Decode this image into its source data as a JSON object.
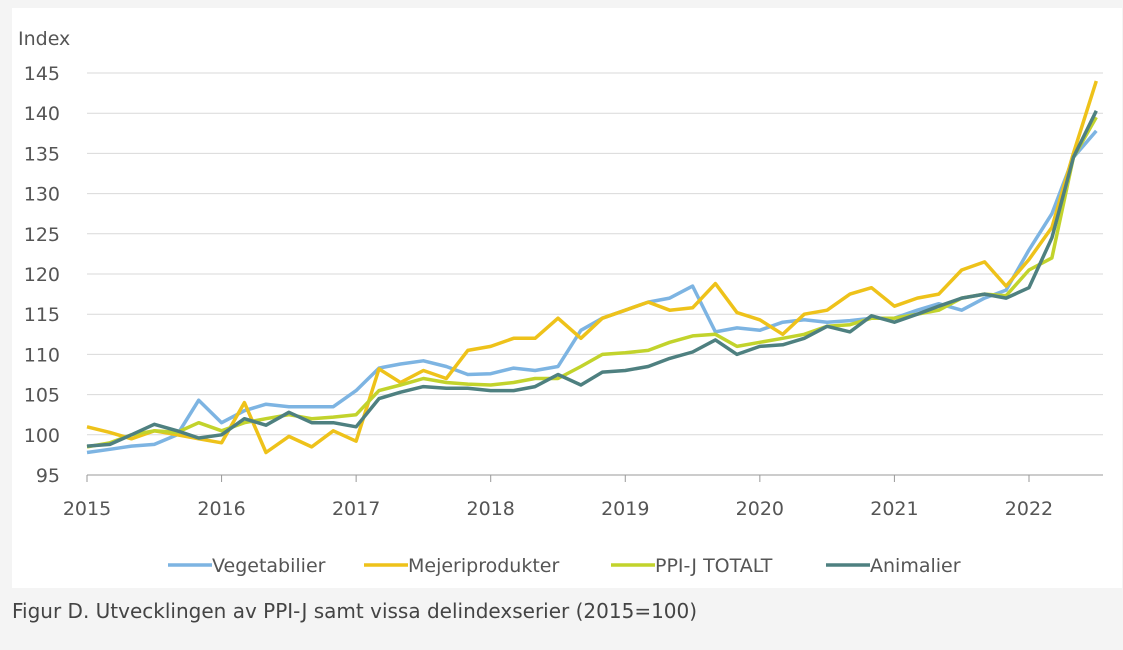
{
  "chart_data": {
    "type": "line",
    "y_label": "Index",
    "caption": "Figur D. Utvecklingen av PPI-J samt vissa delindexserier (2015=100)",
    "x": [
      2015,
      2015.17,
      2015.33,
      2015.5,
      2015.67,
      2015.83,
      2016,
      2016.17,
      2016.33,
      2016.5,
      2016.67,
      2016.83,
      2017,
      2017.17,
      2017.33,
      2017.5,
      2017.67,
      2017.83,
      2018,
      2018.17,
      2018.33,
      2018.5,
      2018.67,
      2018.83,
      2019,
      2019.17,
      2019.33,
      2019.5,
      2019.67,
      2019.83,
      2020,
      2020.17,
      2020.33,
      2020.5,
      2020.67,
      2020.83,
      2021,
      2021.17,
      2021.33,
      2021.5,
      2021.67,
      2021.83,
      2022,
      2022.17,
      2022.33,
      2022.5
    ],
    "series": [
      {
        "name": "Vegetabilier",
        "color": "#7db4e2",
        "values": [
          97.8,
          98.2,
          98.6,
          98.8,
          100,
          104.3,
          101.5,
          103,
          103.8,
          103.5,
          103.5,
          103.5,
          105.5,
          108.3,
          108.8,
          109.2,
          108.5,
          107.5,
          107.6,
          108.3,
          108,
          108.5,
          113,
          114.5,
          115.5,
          116.5,
          117,
          118.5,
          112.8,
          113.3,
          113,
          114,
          114.3,
          114,
          114.2,
          114.5,
          114.5,
          115.5,
          116.3,
          115.5,
          117,
          118,
          123,
          127.5,
          134.5,
          137.8
        ]
      },
      {
        "name": "Mejeriprodukter",
        "color": "#eec21a",
        "values": [
          101,
          100.3,
          99.5,
          100.5,
          100,
          99.5,
          99,
          104,
          97.8,
          99.8,
          98.5,
          100.5,
          99.2,
          108.2,
          106.5,
          108,
          107,
          110.5,
          111,
          112,
          112,
          114.5,
          112,
          114.5,
          115.5,
          116.5,
          115.5,
          115.8,
          118.8,
          115.2,
          114.3,
          112.5,
          115,
          115.5,
          117.5,
          118.3,
          116,
          117,
          117.5,
          120.5,
          121.5,
          118.5,
          121.8,
          125.8,
          135,
          144
        ]
      },
      {
        "name": "PPI-J TOTALT",
        "color": "#c2d32c",
        "values": [
          98.5,
          99,
          100,
          100.5,
          100.3,
          101.5,
          100.5,
          101.5,
          102,
          102.5,
          102,
          102.2,
          102.5,
          105.5,
          106.2,
          107,
          106.5,
          106.3,
          106.2,
          106.5,
          107,
          107,
          108.5,
          110,
          110.2,
          110.5,
          111.5,
          112.3,
          112.5,
          111,
          111.5,
          112,
          112.5,
          113.5,
          113.7,
          114.5,
          114.5,
          115,
          115.5,
          117,
          117.5,
          117.3,
          120.5,
          122,
          134.5,
          139.5
        ]
      },
      {
        "name": "Animalier",
        "color": "#4e8080",
        "values": [
          98.6,
          98.8,
          100,
          101.3,
          100.5,
          99.6,
          100,
          102,
          101.2,
          102.8,
          101.5,
          101.5,
          101,
          104.5,
          105.3,
          106,
          105.8,
          105.8,
          105.5,
          105.5,
          106,
          107.5,
          106.2,
          107.8,
          108,
          108.5,
          109.5,
          110.3,
          111.8,
          110,
          111,
          111.2,
          112,
          113.5,
          112.8,
          114.8,
          114,
          115,
          116,
          117,
          117.5,
          117,
          118.3,
          124.5,
          134.5,
          140.3
        ]
      }
    ],
    "xlim": [
      2015,
      2022.55
    ],
    "xticks": [
      2015,
      2016,
      2017,
      2018,
      2019,
      2020,
      2021,
      2022
    ],
    "ylim": [
      95,
      145
    ],
    "yticks": [
      95,
      100,
      105,
      110,
      115,
      120,
      125,
      130,
      135,
      140,
      145
    ],
    "grid": true
  }
}
